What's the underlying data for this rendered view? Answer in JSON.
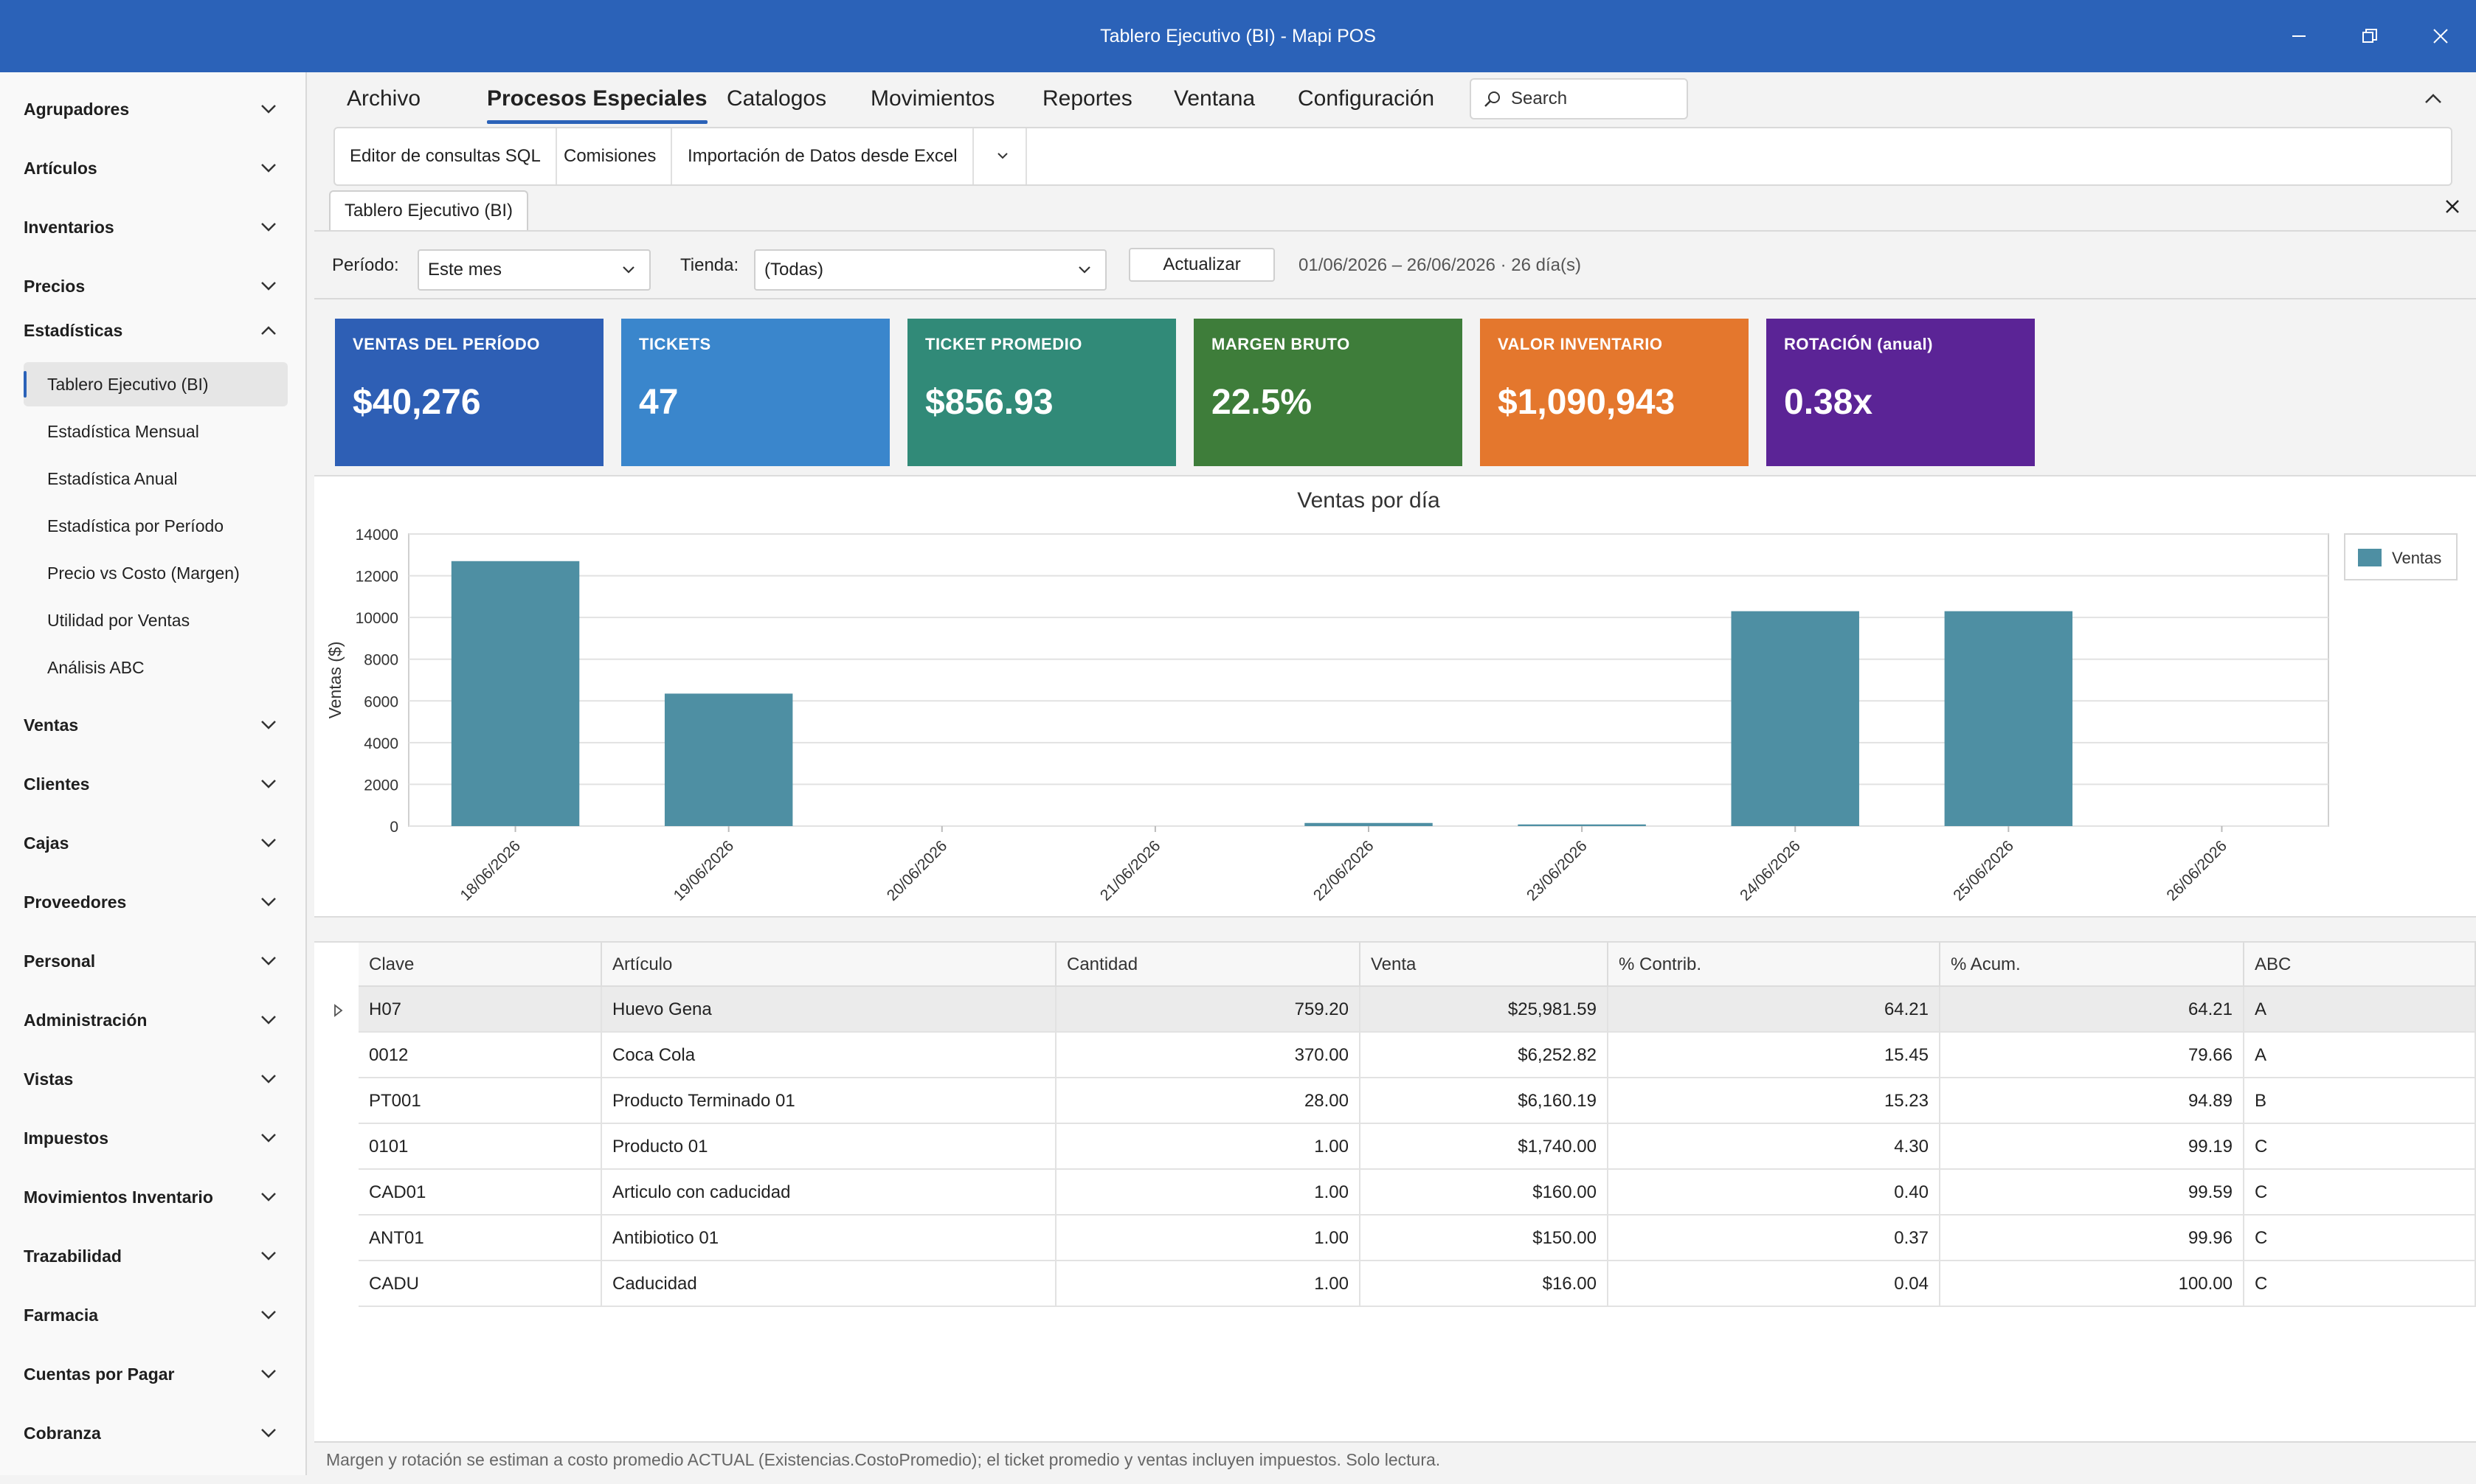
{
  "window": {
    "title": "Tablero Ejecutivo (BI) - Mapi POS"
  },
  "sidebar": {
    "groups_top": [
      {
        "label": "Agrupadores"
      },
      {
        "label": "Artículos"
      },
      {
        "label": "Inventarios"
      },
      {
        "label": "Precios"
      }
    ],
    "expanded": {
      "label": "Estadísticas",
      "items": [
        {
          "label": "Tablero Ejecutivo (BI)",
          "active": true
        },
        {
          "label": "Estadística Mensual"
        },
        {
          "label": "Estadística Anual"
        },
        {
          "label": "Estadística por Período"
        },
        {
          "label": "Precio vs Costo (Margen)"
        },
        {
          "label": "Utilidad por Ventas"
        },
        {
          "label": "Análisis ABC"
        }
      ]
    },
    "groups_bottom": [
      {
        "label": "Ventas"
      },
      {
        "label": "Clientes"
      },
      {
        "label": "Cajas"
      },
      {
        "label": "Proveedores"
      },
      {
        "label": "Personal"
      },
      {
        "label": "Administración"
      },
      {
        "label": "Vistas"
      },
      {
        "label": "Impuestos"
      },
      {
        "label": "Movimientos Inventario"
      },
      {
        "label": "Trazabilidad"
      },
      {
        "label": "Farmacia"
      },
      {
        "label": "Cuentas por Pagar"
      },
      {
        "label": "Cobranza"
      }
    ]
  },
  "menu": {
    "items": [
      "Archivo",
      "Procesos Especiales",
      "Catalogos",
      "Movimientos",
      "Reportes",
      "Ventana",
      "Configuración"
    ],
    "active_index": 1,
    "search_placeholder": "Search"
  },
  "ribbon": {
    "buttons": [
      "Editor de consultas SQL",
      "Comisiones",
      "Importación de Datos desde Excel"
    ]
  },
  "document_tab": {
    "label": "Tablero Ejecutivo (BI)"
  },
  "filters": {
    "period_label": "Período:",
    "period_value": "Este mes",
    "store_label": "Tienda:",
    "store_value": "(Todas)",
    "refresh_label": "Actualizar",
    "range_text": "01/06/2026 – 26/06/2026  ·  26 día(s)"
  },
  "kpis": [
    {
      "title": "VENTAS DEL PERÍODO",
      "value": "$40,276",
      "color": "#2e5fb5"
    },
    {
      "title": "TICKETS",
      "value": "47",
      "color": "#3a86cc"
    },
    {
      "title": "TICKET PROMEDIO",
      "value": "$856.93",
      "color": "#318a78"
    },
    {
      "title": "MARGEN BRUTO",
      "value": "22.5%",
      "color": "#3e7d3a"
    },
    {
      "title": "VALOR INVENTARIO",
      "value": "$1,090,943",
      "color": "#e4772d"
    },
    {
      "title": "ROTACIÓN (anual)",
      "value": "0.38x",
      "color": "#5b2496"
    }
  ],
  "chart_data": {
    "type": "bar",
    "title": "Ventas por día",
    "ylabel": "Ventas ($)",
    "xlabel": "",
    "categories": [
      "18/06/2026",
      "19/06/2026",
      "20/06/2026",
      "21/06/2026",
      "22/06/2026",
      "23/06/2026",
      "24/06/2026",
      "25/06/2026",
      "26/06/2026"
    ],
    "series": [
      {
        "name": "Ventas",
        "color": "#4e8fa3",
        "values": [
          12700,
          6350,
          0,
          0,
          150,
          80,
          10300,
          10300,
          0
        ]
      }
    ],
    "ylim": [
      0,
      14000
    ],
    "yticks": [
      0,
      2000,
      4000,
      6000,
      8000,
      10000,
      12000,
      14000
    ],
    "grid": true,
    "legend": "top-right"
  },
  "table": {
    "columns": [
      "Clave",
      "Artículo",
      "Cantidad",
      "Venta",
      "% Contrib.",
      "% Acum.",
      "ABC"
    ],
    "rows": [
      [
        "H07",
        "Huevo Gena",
        "759.20",
        "$25,981.59",
        "64.21",
        "64.21",
        "A"
      ],
      [
        "0012",
        "Coca Cola",
        "370.00",
        "$6,252.82",
        "15.45",
        "79.66",
        "A"
      ],
      [
        "PT001",
        "Producto Terminado 01",
        "28.00",
        "$6,160.19",
        "15.23",
        "94.89",
        "B"
      ],
      [
        "0101",
        "Producto 01",
        "1.00",
        "$1,740.00",
        "4.30",
        "99.19",
        "C"
      ],
      [
        "CAD01",
        "Articulo con caducidad",
        "1.00",
        "$160.00",
        "0.40",
        "99.59",
        "C"
      ],
      [
        "ANT01",
        "Antibiotico 01",
        "1.00",
        "$150.00",
        "0.37",
        "99.96",
        "C"
      ],
      [
        "CADU",
        "Caducidad",
        "1.00",
        "$16.00",
        "0.04",
        "100.00",
        "C"
      ]
    ]
  },
  "status": {
    "text": "Margen y rotación se estiman a costo promedio ACTUAL (Existencias.CostoPromedio); el ticket promedio y ventas incluyen impuestos. Solo lectura."
  }
}
